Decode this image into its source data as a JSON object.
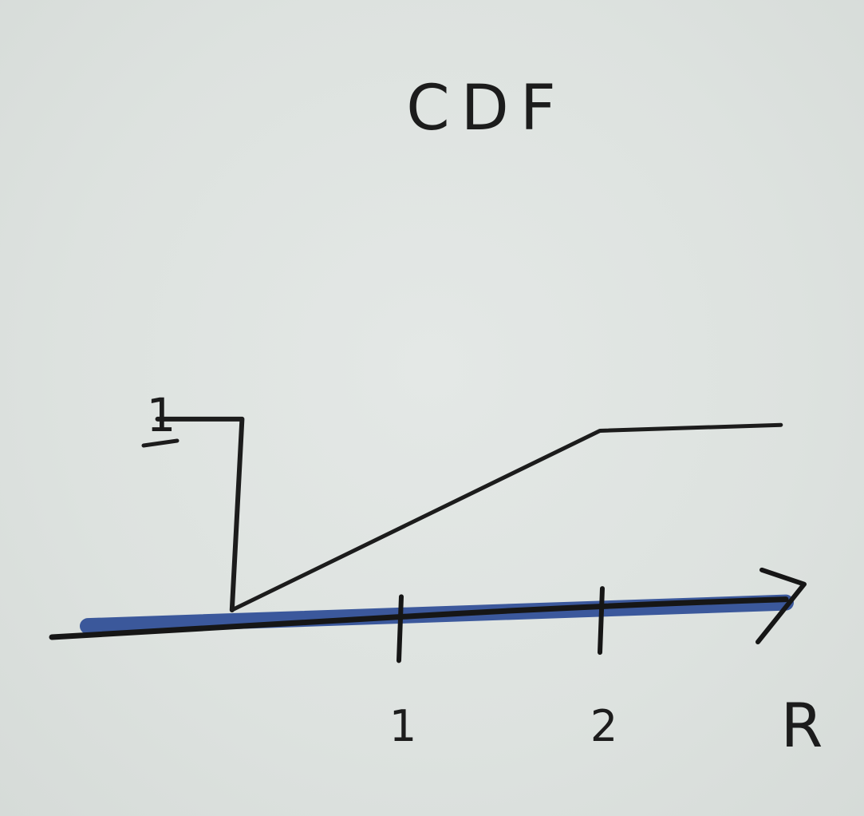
{
  "chart_data": {
    "type": "line",
    "title": "CDF",
    "xlabel": "R",
    "ylabel": "",
    "x_ticks": [
      {
        "value": 1,
        "label": "1"
      },
      {
        "value": 2,
        "label": "2"
      }
    ],
    "y_ticks": [
      {
        "value": 1,
        "label": "1"
      }
    ],
    "xlim": [
      -0.9,
      2.9
    ],
    "ylim": [
      0,
      1
    ],
    "series": [
      {
        "points": [
          {
            "x": 0.17,
            "y": 0
          },
          {
            "x": 0.22,
            "y": 0.98
          },
          {
            "x": 0.17,
            "y": 0.98
          },
          {
            "x": -0.2,
            "y": 0.98
          }
        ]
      },
      {
        "points": [
          {
            "x": 0.17,
            "y": 0
          },
          {
            "x": 2.0,
            "y": 0.92
          },
          {
            "x": 2.9,
            "y": 0.95
          }
        ]
      }
    ],
    "axis_color": "#1f3f8f",
    "line_color": "#1c1c1c",
    "grid": false,
    "legend": "none"
  }
}
